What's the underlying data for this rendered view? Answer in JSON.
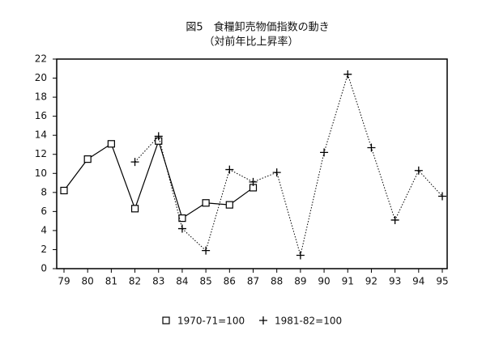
{
  "chart_data": {
    "type": "line",
    "title": "図5　食糧卸売物価指数の動き",
    "subtitle": "（対前年比上昇率）",
    "categories": [
      "79",
      "80",
      "81",
      "82",
      "83",
      "84",
      "85",
      "86",
      "87",
      "88",
      "89",
      "90",
      "91",
      "92",
      "93",
      "94",
      "95"
    ],
    "series": [
      {
        "name": "1970-71=100",
        "color": "#000000",
        "marker": "square",
        "dash": "solid",
        "values": [
          8.2,
          11.5,
          13.1,
          6.3,
          13.4,
          5.3,
          6.9,
          6.7,
          8.5,
          null,
          null,
          null,
          null,
          null,
          null,
          null,
          null
        ]
      },
      {
        "name": "1981-82=100",
        "color": "#000000",
        "marker": "plus",
        "dash": "dotted",
        "values": [
          null,
          null,
          null,
          11.2,
          13.9,
          4.2,
          1.9,
          10.4,
          9.1,
          10.1,
          1.4,
          12.2,
          20.4,
          12.7,
          5.1,
          10.3,
          7.6
        ]
      }
    ],
    "ylim": [
      0,
      22
    ],
    "yticks": [
      0,
      2,
      4,
      6,
      8,
      10,
      12,
      14,
      16,
      18,
      20,
      22
    ],
    "legend": "bottom"
  }
}
